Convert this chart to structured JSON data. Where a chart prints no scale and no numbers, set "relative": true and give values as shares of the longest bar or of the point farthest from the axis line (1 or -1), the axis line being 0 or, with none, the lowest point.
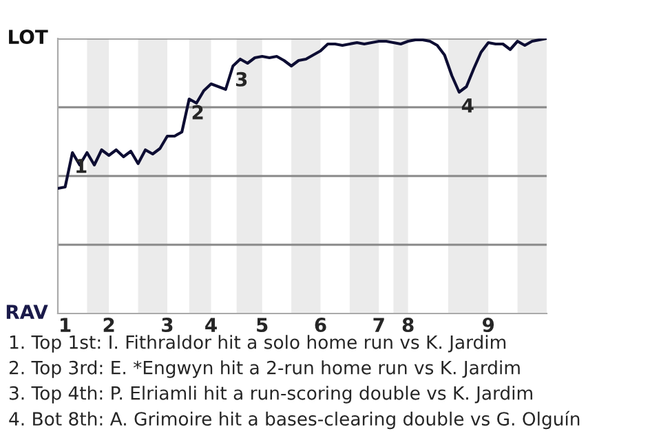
{
  "chart_data": {
    "type": "line",
    "relative": true,
    "categories": [
      null,
      "1",
      null,
      null,
      null,
      null,
      null,
      "2",
      null,
      null,
      null,
      null,
      null,
      null,
      null,
      "3",
      null,
      null,
      null,
      null,
      null,
      "4",
      null,
      null,
      null,
      null,
      null,
      null,
      "5",
      null,
      null,
      null,
      null,
      null,
      null,
      null,
      "6",
      null,
      null,
      null,
      null,
      null,
      null,
      null,
      "7",
      null,
      null,
      null,
      "8",
      null,
      null,
      null,
      null,
      null,
      null,
      null,
      null,
      null,
      null,
      "9",
      null,
      null,
      null,
      null,
      null,
      null,
      null,
      null
    ],
    "series": [
      {
        "color": "#0d0d33",
        "values": [
          0.455,
          0.46,
          0.585,
          0.54,
          0.585,
          0.54,
          0.595,
          0.575,
          0.595,
          0.57,
          0.59,
          0.545,
          0.595,
          0.58,
          0.6,
          0.645,
          0.645,
          0.66,
          0.78,
          0.765,
          0.81,
          0.835,
          0.825,
          0.815,
          0.9,
          0.925,
          0.91,
          0.93,
          0.935,
          0.93,
          0.935,
          0.92,
          0.9,
          0.92,
          0.925,
          0.94,
          0.955,
          0.98,
          0.98,
          0.975,
          0.98,
          0.985,
          0.98,
          0.985,
          0.99,
          0.99,
          0.985,
          0.98,
          0.99,
          0.995,
          0.995,
          0.99,
          0.975,
          0.94,
          0.865,
          0.805,
          0.825,
          0.89,
          0.95,
          0.985,
          0.98,
          0.98,
          0.96,
          0.99,
          0.975,
          0.99,
          0.995,
          1.0
        ]
      }
    ],
    "marker": "none",
    "line_style": "solid",
    "ref_lines": [
      {
        "axis": "y",
        "value": 0.25,
        "color": "#888888"
      },
      {
        "axis": "y",
        "value": 0.5,
        "color": "#888888"
      },
      {
        "axis": "y",
        "value": 0.75,
        "color": "#888888"
      },
      {
        "axis": "y",
        "value": 1.0,
        "color": "#888888"
      }
    ],
    "annotations": [
      "LOT",
      "RAV",
      {
        "text": "1",
        "y": 0.585
      },
      {
        "text": "2",
        "y": 0.78
      },
      {
        "text": "3",
        "y": 0.9
      },
      {
        "text": "4",
        "y": 0.805
      },
      "1. Top 1st: I. Fithraldor hit a solo home run vs K. Jardim",
      "2. Top 3rd: E. *Engwyn hit a 2-run home run vs K. Jardim",
      "3. Top 4th: P. Elriamli hit a run-scoring double vs K. Jardim",
      "4. Bot 8th: A. Grimoire hit a bases-clearing double vs G. Olguín"
    ]
  }
}
